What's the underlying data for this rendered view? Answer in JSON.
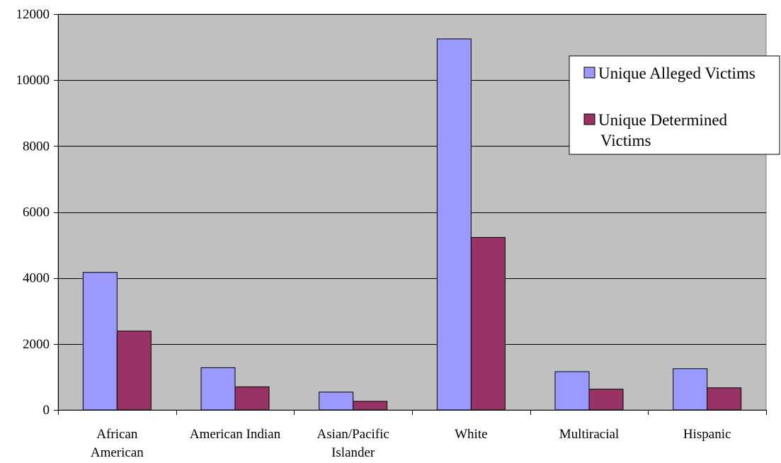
{
  "chart_data": {
    "type": "bar",
    "categories": [
      [
        "African",
        "American"
      ],
      [
        "American Indian"
      ],
      [
        "Asian/Pacific",
        "Islander"
      ],
      [
        "White"
      ],
      [
        "Multiracial"
      ],
      [
        "Hispanic"
      ]
    ],
    "series": [
      {
        "name": [
          "Unique Alleged Victims"
        ],
        "color": "#9999ff",
        "values": [
          4170,
          1280,
          540,
          11250,
          1160,
          1250
        ]
      },
      {
        "name": [
          "Unique Determined",
          "Victims"
        ],
        "color": "#993366",
        "values": [
          2390,
          700,
          260,
          5230,
          630,
          670
        ]
      }
    ],
    "yticks": [
      0,
      2000,
      4000,
      6000,
      8000,
      10000,
      12000
    ],
    "ylim": [
      0,
      12000
    ],
    "grid": true,
    "plot_background": "#c0c0c0",
    "legend_position": "right-top"
  }
}
